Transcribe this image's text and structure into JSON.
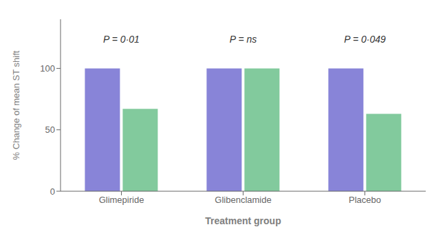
{
  "chart_data": {
    "type": "bar",
    "categories": [
      "Glimepiride",
      "Glibenclamide",
      "Placebo"
    ],
    "series": [
      {
        "color": "#8884d8",
        "values": [
          100,
          100,
          100
        ]
      },
      {
        "color": "#82ca9d",
        "values": [
          67,
          100,
          63
        ]
      }
    ],
    "xlabel": "Treatment group",
    "ylabel": "% Change of mean ST shift",
    "ylim": [
      0,
      140
    ],
    "yticks": [
      0,
      50,
      100
    ],
    "grid": false,
    "annotations": [
      {
        "category": "Glimepiride",
        "y": 118,
        "text": "P = 0·01"
      },
      {
        "category": "Glibenclamide",
        "y": 118,
        "text": "P = ns"
      },
      {
        "category": "Placebo",
        "y": 118,
        "text": "P = 0·049"
      }
    ]
  }
}
